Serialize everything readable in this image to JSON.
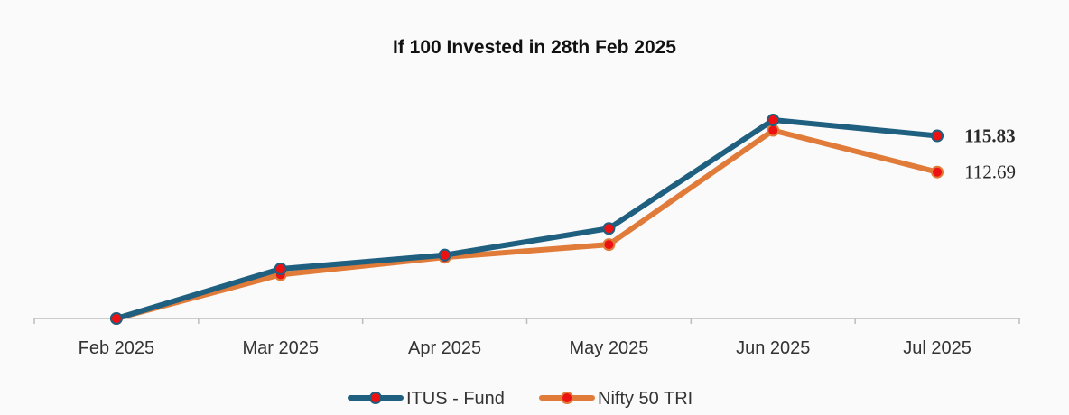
{
  "chart_data": {
    "type": "line",
    "title": "If 100 Invested in 28th Feb 2025",
    "categories": [
      "Feb 2025",
      "Mar 2025",
      "Apr 2025",
      "May 2025",
      "Jun 2025",
      "Jul 2025"
    ],
    "series": [
      {
        "name": "ITUS - Fund",
        "values": [
          100,
          104.3,
          105.5,
          107.8,
          117.2,
          115.83
        ],
        "color": "#1f5f7f",
        "end_label": "115.83",
        "end_label_bold": true
      },
      {
        "name": "Nifty 50 TRI",
        "values": [
          100,
          103.8,
          105.3,
          106.4,
          116.3,
          112.69
        ],
        "color": "#e07b39",
        "end_label": "112.69",
        "end_label_bold": false
      }
    ],
    "marker_color": "#ee1111",
    "ylim": [
      100,
      119
    ],
    "grid": false,
    "legend_position": "bottom"
  }
}
